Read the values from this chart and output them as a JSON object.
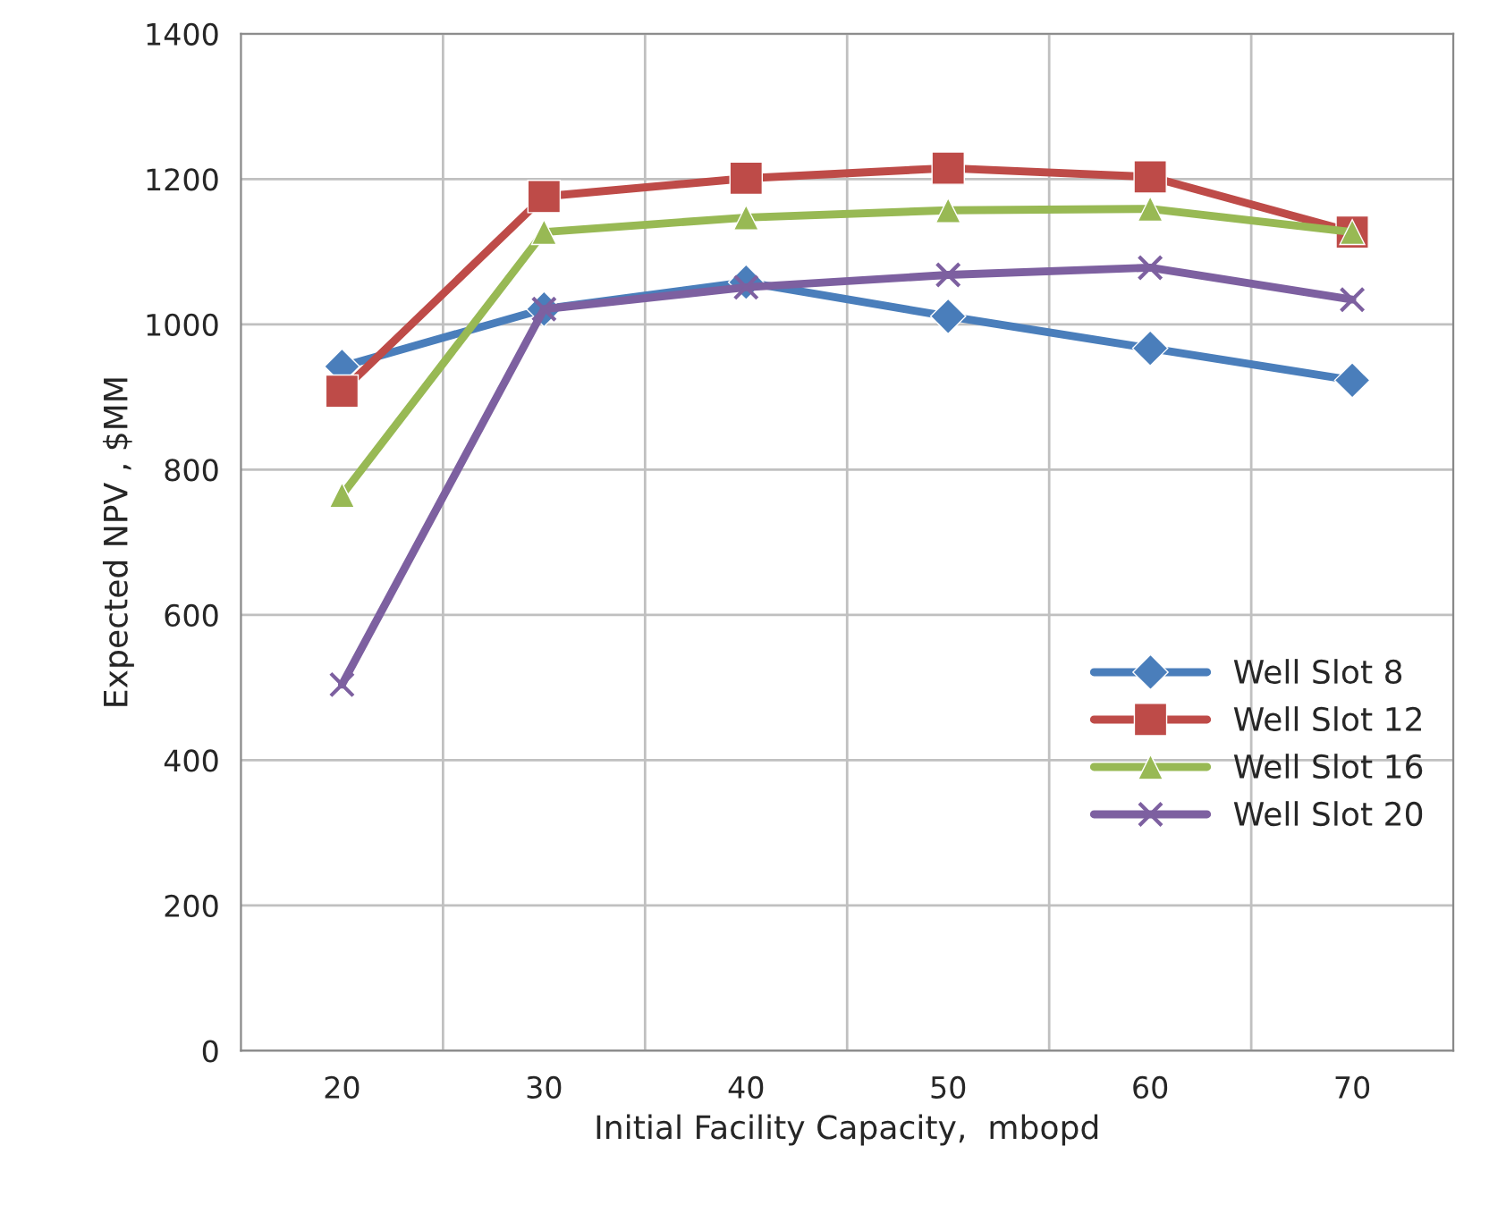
{
  "chart_data": {
    "type": "line",
    "xlabel": "Initial Facility Capacity,  mbopd",
    "ylabel": "Expected NPV , $MM",
    "categories": [
      "20",
      "30",
      "40",
      "50",
      "60",
      "70"
    ],
    "series": [
      {
        "name": "Well Slot 8",
        "color": "#4a7ebb",
        "marker": "diamond",
        "values": [
          942,
          1021,
          1058,
          1011,
          967,
          923
        ]
      },
      {
        "name": "Well Slot 12",
        "color": "#be4b48",
        "marker": "square",
        "values": [
          908,
          1176,
          1201,
          1215,
          1203,
          1127
        ]
      },
      {
        "name": "Well Slot 16",
        "color": "#98b954",
        "marker": "triangle",
        "values": [
          765,
          1127,
          1147,
          1157,
          1159,
          1127
        ]
      },
      {
        "name": "Well Slot 20",
        "color": "#7d60a0",
        "marker": "cross",
        "values": [
          504,
          1021,
          1051,
          1068,
          1078,
          1034
        ]
      }
    ],
    "ylim": [
      0,
      1400
    ],
    "yticks": [
      0,
      200,
      400,
      600,
      800,
      1000,
      1200,
      1400
    ],
    "grid": true,
    "legend": "right",
    "line_style": "solid"
  }
}
